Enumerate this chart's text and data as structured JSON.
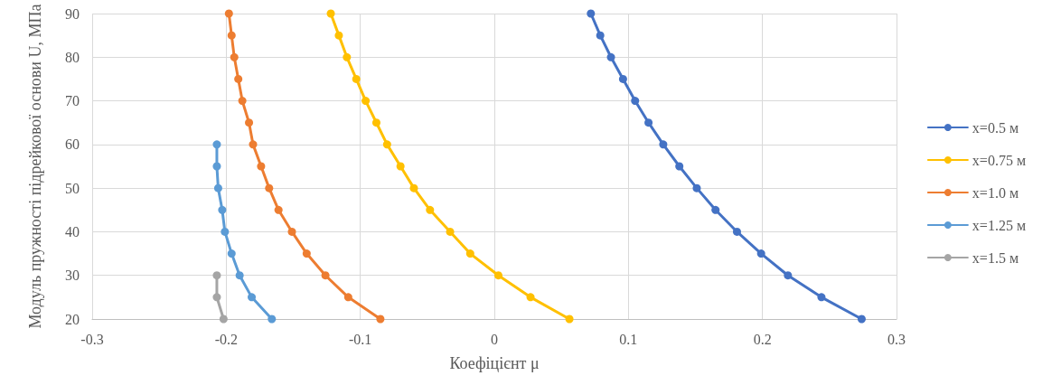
{
  "chart_data": {
    "type": "line",
    "xlabel": "Коефіцієнт μ",
    "ylabel": "Модуль пружності підрейкової основи U, МПа",
    "xlim": [
      -0.3,
      0.3
    ],
    "xticks": [
      -0.3,
      -0.2,
      -0.1,
      0,
      0.1,
      0.2,
      0.3
    ],
    "ylim": [
      20,
      90
    ],
    "yticks": [
      20,
      30,
      40,
      50,
      60,
      70,
      80,
      90
    ],
    "grid": true,
    "legend": "right",
    "marker": "circle",
    "line_style": "solid",
    "series": [
      {
        "name": "x=0.5 м",
        "color": "#4472c4",
        "x": [
          0.274,
          0.244,
          0.219,
          0.199,
          0.181,
          0.165,
          0.151,
          0.138,
          0.126,
          0.115,
          0.105,
          0.096,
          0.087,
          0.079,
          0.072
        ],
        "values": [
          20,
          25,
          30,
          35,
          40,
          45,
          50,
          55,
          60,
          65,
          70,
          75,
          80,
          85,
          90
        ]
      },
      {
        "name": "x=0.75 м",
        "color": "#ffc000",
        "x": [
          0.056,
          0.027,
          0.003,
          -0.018,
          -0.033,
          -0.048,
          -0.06,
          -0.07,
          -0.08,
          -0.088,
          -0.096,
          -0.103,
          -0.11,
          -0.116,
          -0.122
        ],
        "values": [
          20,
          25,
          30,
          35,
          40,
          45,
          50,
          55,
          60,
          65,
          70,
          75,
          80,
          85,
          90
        ]
      },
      {
        "name": "x=1.0 м",
        "color": "#ed7d31",
        "x": [
          -0.085,
          -0.109,
          -0.126,
          -0.14,
          -0.151,
          -0.161,
          -0.168,
          -0.174,
          -0.18,
          -0.183,
          -0.188,
          -0.191,
          -0.194,
          -0.196,
          -0.198
        ],
        "values": [
          20,
          25,
          30,
          35,
          40,
          45,
          50,
          55,
          60,
          65,
          70,
          75,
          80,
          85,
          90
        ]
      },
      {
        "name": "x=1.25 м",
        "color": "#5b9bd5",
        "x": [
          -0.166,
          -0.181,
          -0.19,
          -0.196,
          -0.201,
          -0.203,
          -0.206,
          -0.207,
          -0.207
        ],
        "values": [
          20,
          25,
          30,
          35,
          40,
          45,
          50,
          55,
          60
        ]
      },
      {
        "name": "x=1.5 м",
        "color": "#a5a5a5",
        "x": [
          -0.202,
          -0.207,
          -0.207
        ],
        "values": [
          20,
          25,
          30
        ]
      }
    ]
  }
}
